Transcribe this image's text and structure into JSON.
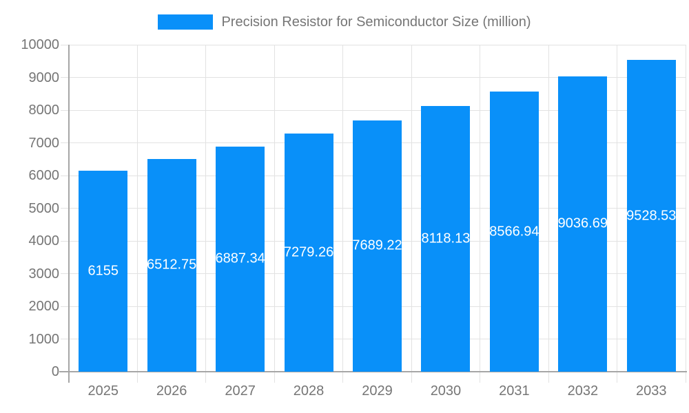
{
  "chart_data": {
    "type": "bar",
    "title": "",
    "legend": {
      "position": "top",
      "entries": [
        "Precision Resistor for Semiconductor Size (million)"
      ]
    },
    "categories": [
      "2025",
      "2026",
      "2027",
      "2028",
      "2029",
      "2030",
      "2031",
      "2032",
      "2033"
    ],
    "series": [
      {
        "name": "Precision Resistor for Semiconductor Size (million)",
        "values": [
          6155,
          6512.75,
          6887.34,
          7279.26,
          7689.22,
          8118.13,
          8566.94,
          9036.69,
          9528.53
        ],
        "bar_labels": [
          "6155",
          "6512.75",
          "6887.34",
          "7279.26",
          "7689.22",
          "8118.13",
          "8566.94",
          "9036.69",
          "9528.53"
        ],
        "color": "#0990F9"
      }
    ],
    "xlabel": "",
    "ylabel": "",
    "ylim": [
      0,
      10000
    ],
    "yticks": [
      0,
      1000,
      2000,
      3000,
      4000,
      5000,
      6000,
      7000,
      8000,
      9000,
      10000
    ],
    "grid": true,
    "colors": {
      "bar": "#0990F9",
      "grid": "#E2E2E2",
      "axis": "#A6A6A6",
      "text": "#757575",
      "bar_label": "#FFFFFF",
      "background": "#FFFFFF"
    }
  }
}
